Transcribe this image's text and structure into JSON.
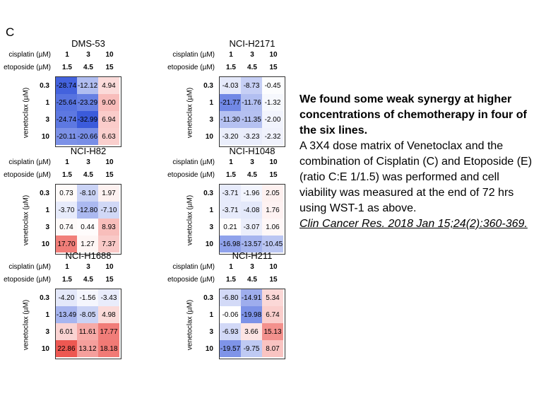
{
  "panel_label": "C",
  "axis_text": {
    "cisplatin_label": "cisplatin (µM)",
    "etoposide_label": "etoposide (µM)",
    "venetoclax_label": "venetoclax (µM)"
  },
  "chart_data": [
    {
      "type": "heatmap",
      "title": "DMS-53",
      "x_cisplatin": [
        "1",
        "3",
        "10"
      ],
      "x_etoposide": [
        "1.5",
        "4.5",
        "15"
      ],
      "y_venetoclax": [
        "0.3",
        "1",
        "3",
        "10"
      ],
      "values": [
        [
          -28.74,
          -12.12,
          4.94
        ],
        [
          -25.64,
          -23.29,
          9.0
        ],
        [
          -24.74,
          -32.99,
          6.94
        ],
        [
          -20.11,
          -20.66,
          6.63
        ]
      ],
      "labels": [
        [
          "-28.74",
          "-12.12",
          "4.94"
        ],
        [
          "-25.64",
          "-23.29",
          "9.00"
        ],
        [
          "-24.74",
          "-32.99",
          "6.94"
        ],
        [
          "-20.11",
          "-20.66",
          "6.63"
        ]
      ]
    },
    {
      "type": "heatmap",
      "title": "NCI-H2171",
      "x_cisplatin": [
        "1",
        "3",
        "10"
      ],
      "x_etoposide": [
        "1.5",
        "4.5",
        "15"
      ],
      "y_venetoclax": [
        "0.3",
        "1",
        "3",
        "10"
      ],
      "values": [
        [
          -4.03,
          -8.73,
          -0.45
        ],
        [
          -21.77,
          -11.76,
          -1.32
        ],
        [
          -11.3,
          -11.35,
          -2.0
        ],
        [
          -3.2,
          -3.23,
          -2.32
        ]
      ],
      "labels": [
        [
          "-4.03",
          "-8.73",
          "-0.45"
        ],
        [
          "-21.77",
          "-11.76",
          "-1.32"
        ],
        [
          "-11.30",
          "-11.35",
          "-2.00"
        ],
        [
          "-3.20",
          "-3.23",
          "-2.32"
        ]
      ]
    },
    {
      "type": "heatmap",
      "title": "NCI-H82",
      "x_cisplatin": [
        "1",
        "3",
        "10"
      ],
      "x_etoposide": [
        "1.5",
        "4.5",
        "15"
      ],
      "y_venetoclax": [
        "0.3",
        "1",
        "3",
        "10"
      ],
      "values": [
        [
          0.73,
          -8.1,
          1.97
        ],
        [
          -3.7,
          -12.8,
          -7.1
        ],
        [
          0.74,
          0.44,
          8.93
        ],
        [
          17.7,
          1.27,
          7.37
        ]
      ],
      "labels": [
        [
          "0.73",
          "-8.10",
          "1.97"
        ],
        [
          "-3.70",
          "-12.80",
          "-7.10"
        ],
        [
          "0.74",
          "0.44",
          "8.93"
        ],
        [
          "17.70",
          "1.27",
          "7.37"
        ]
      ]
    },
    {
      "type": "heatmap",
      "title": "NCI-H1048",
      "x_cisplatin": [
        "1",
        "3",
        "10"
      ],
      "x_etoposide": [
        "1.5",
        "4.5",
        "15"
      ],
      "y_venetoclax": [
        "0.3",
        "1",
        "3",
        "10"
      ],
      "values": [
        [
          -3.71,
          -1.96,
          2.05
        ],
        [
          -3.71,
          -4.08,
          1.76
        ],
        [
          0.21,
          -3.07,
          1.06
        ],
        [
          -16.98,
          -13.57,
          -10.45
        ]
      ],
      "labels": [
        [
          "-3.71",
          "-1.96",
          "2.05"
        ],
        [
          "-3.71",
          "-4.08",
          "1.76"
        ],
        [
          "0.21",
          "-3.07",
          "1.06"
        ],
        [
          "-16.98",
          "-13.57",
          "-10.45"
        ]
      ]
    },
    {
      "type": "heatmap",
      "title": "NCI-H1688",
      "x_cisplatin": [
        "1",
        "3",
        "10"
      ],
      "x_etoposide": [
        "1.5",
        "4.5",
        "15"
      ],
      "y_venetoclax": [
        "0.3",
        "1",
        "3",
        "10"
      ],
      "values": [
        [
          -4.2,
          -1.56,
          -3.43
        ],
        [
          -13.49,
          -8.05,
          4.98
        ],
        [
          6.01,
          11.61,
          17.77
        ],
        [
          22.86,
          13.12,
          18.18
        ]
      ],
      "labels": [
        [
          "-4.20",
          "-1.56",
          "-3.43"
        ],
        [
          "-13.49",
          "-8.05",
          "4.98"
        ],
        [
          "6.01",
          "11.61",
          "17.77"
        ],
        [
          "22.86",
          "13.12",
          "18.18"
        ]
      ]
    },
    {
      "type": "heatmap",
      "title": "NCI-H211",
      "x_cisplatin": [
        "1",
        "3",
        "10"
      ],
      "x_etoposide": [
        "1.5",
        "4.5",
        "15"
      ],
      "y_venetoclax": [
        "0.3",
        "1",
        "3",
        "10"
      ],
      "values": [
        [
          -6.8,
          -14.91,
          5.34
        ],
        [
          -0.06,
          -19.98,
          6.74
        ],
        [
          -6.93,
          3.66,
          15.13
        ],
        [
          -19.57,
          -9.75,
          8.07
        ]
      ],
      "labels": [
        [
          "-6.80",
          "-14.91",
          "5.34"
        ],
        [
          "-0.06",
          "-19.98",
          "6.74"
        ],
        [
          "-6.93",
          "3.66",
          "15.13"
        ],
        [
          "-19.57",
          "-9.75",
          "8.07"
        ]
      ]
    }
  ],
  "colors": {
    "negative": "#3b5bdb",
    "neutral": "#ffffff",
    "positive": "#e8241c"
  },
  "note": {
    "heading": "We found some weak synergy at higher concentrations of chemotherapy in four of the six lines.",
    "body": "A 3X4 dose matrix of Venetoclax and the combination of Cisplatin (C) and Etoposide (E) (ratio C:E 1/1.5) was performed and cell viability was measured at the end of 72 hrs using WST-1 as above.",
    "citation": "Clin Cancer Res. 2018 Jan 15;24(2):360-369."
  }
}
